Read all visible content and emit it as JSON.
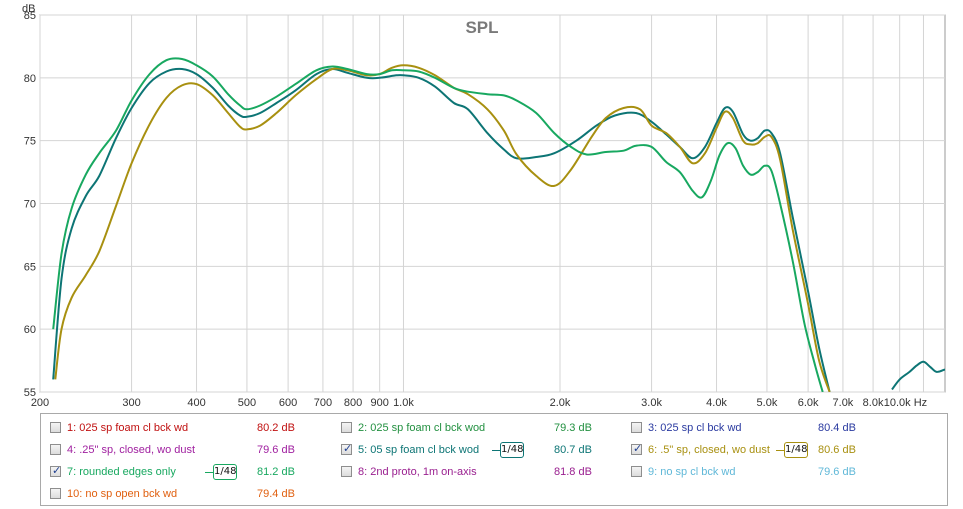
{
  "chart_data": {
    "type": "line",
    "title": "SPL",
    "ylabel": "dB",
    "xunit": "Hz",
    "xscale": "log",
    "xlim": [
      200,
      11000
    ],
    "ylim": [
      55,
      85
    ],
    "grid": true,
    "yticks": [
      55,
      60,
      65,
      70,
      75,
      80,
      85
    ],
    "xticks": [
      {
        "v": 200,
        "label": "200"
      },
      {
        "v": 300,
        "label": "300"
      },
      {
        "v": 400,
        "label": "400"
      },
      {
        "v": 500,
        "label": "500"
      },
      {
        "v": 600,
        "label": "600"
      },
      {
        "v": 700,
        "label": "700"
      },
      {
        "v": 800,
        "label": "800"
      },
      {
        "v": 900,
        "label": "900"
      },
      {
        "v": 1000,
        "label": "1.0k"
      },
      {
        "v": 2000,
        "label": "2.0k"
      },
      {
        "v": 3000,
        "label": "3.0k"
      },
      {
        "v": 4000,
        "label": "4.0k"
      },
      {
        "v": 5000,
        "label": "5.0k"
      },
      {
        "v": 6000,
        "label": "6.0k"
      },
      {
        "v": 7000,
        "label": "7.0k"
      },
      {
        "v": 8000,
        "label": "8.0k"
      },
      {
        "v": 10000,
        "label": "10.0k Hz"
      }
    ],
    "series": [
      {
        "id": "s5",
        "color": "#0d7575",
        "points": [
          [
            212,
            56
          ],
          [
            220,
            64
          ],
          [
            230,
            68
          ],
          [
            245,
            70.6
          ],
          [
            260,
            72.2
          ],
          [
            280,
            75.2
          ],
          [
            300,
            77.6
          ],
          [
            325,
            79.6
          ],
          [
            350,
            80.5
          ],
          [
            375,
            80.7
          ],
          [
            400,
            80.3
          ],
          [
            430,
            79.2
          ],
          [
            460,
            77.8
          ],
          [
            485,
            77.0
          ],
          [
            500,
            76.9
          ],
          [
            530,
            77.2
          ],
          [
            570,
            78.0
          ],
          [
            620,
            79.0
          ],
          [
            680,
            80.3
          ],
          [
            730,
            80.7
          ],
          [
            780,
            80.4
          ],
          [
            850,
            80.0
          ],
          [
            900,
            80.0
          ],
          [
            970,
            80.2
          ],
          [
            1000,
            80.2
          ],
          [
            1070,
            80.0
          ],
          [
            1150,
            79.3
          ],
          [
            1250,
            78.0
          ],
          [
            1330,
            77.5
          ],
          [
            1450,
            75.6
          ],
          [
            1560,
            74.3
          ],
          [
            1650,
            73.6
          ],
          [
            1800,
            73.7
          ],
          [
            1950,
            74.0
          ],
          [
            2150,
            75.0
          ],
          [
            2350,
            76.2
          ],
          [
            2550,
            77.0
          ],
          [
            2800,
            77.2
          ],
          [
            3000,
            76.5
          ],
          [
            3200,
            75.5
          ],
          [
            3400,
            74.5
          ],
          [
            3600,
            73.6
          ],
          [
            3800,
            74.5
          ],
          [
            4000,
            76.4
          ],
          [
            4150,
            77.6
          ],
          [
            4300,
            77.3
          ],
          [
            4500,
            75.5
          ],
          [
            4650,
            75.0
          ],
          [
            4800,
            75.2
          ],
          [
            4950,
            75.8
          ],
          [
            5100,
            75.6
          ],
          [
            5300,
            74.0
          ],
          [
            5600,
            69.0
          ],
          [
            6000,
            63.0
          ],
          [
            6300,
            58.5
          ],
          [
            6600,
            55.0
          ]
        ]
      },
      {
        "id": "s6",
        "color": "#a89010",
        "points": [
          [
            214,
            56
          ],
          [
            220,
            60
          ],
          [
            230,
            62.5
          ],
          [
            245,
            64.3
          ],
          [
            260,
            66.2
          ],
          [
            280,
            69.8
          ],
          [
            300,
            73.2
          ],
          [
            325,
            76.3
          ],
          [
            350,
            78.4
          ],
          [
            375,
            79.4
          ],
          [
            400,
            79.5
          ],
          [
            430,
            78.6
          ],
          [
            460,
            77.2
          ],
          [
            485,
            76.1
          ],
          [
            500,
            75.9
          ],
          [
            530,
            76.2
          ],
          [
            570,
            77.2
          ],
          [
            620,
            78.6
          ],
          [
            680,
            79.9
          ],
          [
            730,
            80.7
          ],
          [
            780,
            80.6
          ],
          [
            850,
            80.2
          ],
          [
            900,
            80.3
          ],
          [
            950,
            80.8
          ],
          [
            1000,
            81.0
          ],
          [
            1070,
            80.8
          ],
          [
            1150,
            80.2
          ],
          [
            1250,
            79.2
          ],
          [
            1330,
            78.7
          ],
          [
            1450,
            77.5
          ],
          [
            1560,
            75.8
          ],
          [
            1650,
            73.9
          ],
          [
            1800,
            72.2
          ],
          [
            1950,
            71.4
          ],
          [
            2100,
            72.7
          ],
          [
            2300,
            75.3
          ],
          [
            2450,
            76.8
          ],
          [
            2650,
            77.6
          ],
          [
            2850,
            77.5
          ],
          [
            3000,
            76.2
          ],
          [
            3200,
            75.6
          ],
          [
            3400,
            74.5
          ],
          [
            3600,
            73.2
          ],
          [
            3800,
            74.0
          ],
          [
            4000,
            76.0
          ],
          [
            4150,
            77.3
          ],
          [
            4300,
            76.8
          ],
          [
            4500,
            75.0
          ],
          [
            4650,
            74.7
          ],
          [
            4800,
            74.8
          ],
          [
            4950,
            75.3
          ],
          [
            5100,
            75.3
          ],
          [
            5300,
            73.5
          ],
          [
            5600,
            68.0
          ],
          [
            6000,
            62.0
          ],
          [
            6300,
            57.5
          ],
          [
            6600,
            55.0
          ]
        ]
      },
      {
        "id": "s7",
        "color": "#18a860",
        "points": [
          [
            212,
            60
          ],
          [
            220,
            66
          ],
          [
            230,
            69.6
          ],
          [
            245,
            72.3
          ],
          [
            260,
            74.0
          ],
          [
            280,
            75.8
          ],
          [
            300,
            78.2
          ],
          [
            325,
            80.3
          ],
          [
            350,
            81.4
          ],
          [
            375,
            81.5
          ],
          [
            400,
            81.0
          ],
          [
            430,
            80.1
          ],
          [
            460,
            78.7
          ],
          [
            485,
            77.8
          ],
          [
            500,
            77.5
          ],
          [
            530,
            77.8
          ],
          [
            570,
            78.5
          ],
          [
            620,
            79.5
          ],
          [
            680,
            80.6
          ],
          [
            730,
            80.9
          ],
          [
            780,
            80.7
          ],
          [
            850,
            80.3
          ],
          [
            900,
            80.3
          ],
          [
            950,
            80.6
          ],
          [
            1000,
            80.6
          ],
          [
            1070,
            80.5
          ],
          [
            1150,
            80.0
          ],
          [
            1250,
            79.2
          ],
          [
            1330,
            78.9
          ],
          [
            1450,
            78.7
          ],
          [
            1560,
            78.6
          ],
          [
            1650,
            78.2
          ],
          [
            1800,
            77.2
          ],
          [
            1950,
            75.6
          ],
          [
            2100,
            74.5
          ],
          [
            2250,
            73.9
          ],
          [
            2450,
            74.1
          ],
          [
            2650,
            74.2
          ],
          [
            2800,
            74.6
          ],
          [
            3000,
            74.5
          ],
          [
            3200,
            73.3
          ],
          [
            3400,
            72.5
          ],
          [
            3600,
            71.0
          ],
          [
            3750,
            70.5
          ],
          [
            3900,
            71.8
          ],
          [
            4050,
            73.8
          ],
          [
            4200,
            74.8
          ],
          [
            4350,
            74.4
          ],
          [
            4500,
            73.0
          ],
          [
            4650,
            72.3
          ],
          [
            4800,
            72.5
          ],
          [
            4950,
            73.0
          ],
          [
            5100,
            72.6
          ],
          [
            5300,
            70.0
          ],
          [
            5600,
            65.5
          ],
          [
            5900,
            60.5
          ],
          [
            6200,
            57.0
          ],
          [
            6400,
            55.0
          ]
        ]
      },
      {
        "id": "s5-tail",
        "color": "#0d7575",
        "points": [
          [
            8700,
            55.2
          ],
          [
            9000,
            56.0
          ],
          [
            9400,
            56.6
          ],
          [
            9700,
            57.1
          ],
          [
            10000,
            57.4
          ],
          [
            10300,
            57.0
          ],
          [
            10600,
            56.6
          ],
          [
            11000,
            56.8
          ]
        ]
      }
    ]
  },
  "legend": {
    "items": [
      {
        "label": "1: 025 sp foam cl bck wd",
        "value": "80.2 dB",
        "color": "#c01010",
        "checked": false,
        "smooth": ""
      },
      {
        "label": "2: 025 sp foam cl bck wod",
        "value": "79.3 dB",
        "color": "#229040",
        "checked": false,
        "smooth": ""
      },
      {
        "label": "3: 025 sp cl bck wd",
        "value": "80.4 dB",
        "color": "#2a3aa0",
        "checked": false,
        "smooth": ""
      },
      {
        "label": "4: .25\" sp, closed, wo dust",
        "value": "79.6 dB",
        "color": "#a020a0",
        "checked": false,
        "smooth": ""
      },
      {
        "label": "5: 05 sp foam cl bck wod",
        "value": "80.7 dB",
        "color": "#0d7575",
        "checked": true,
        "smooth": "1/48"
      },
      {
        "label": "6: .5\" sp, closed, wo dust",
        "value": "80.6 dB",
        "color": "#a89010",
        "checked": true,
        "smooth": "1/48"
      },
      {
        "label": "7: rounded edges only",
        "value": "81.2 dB",
        "color": "#18a860",
        "checked": true,
        "smooth": "1/48"
      },
      {
        "label": "8: 2nd proto, 1m on-axis",
        "value": "81.8 dB",
        "color": "#9a2090",
        "checked": false,
        "smooth": ""
      },
      {
        "label": "9: no sp cl bck wd",
        "value": "79.6 dB",
        "color": "#60b8d8",
        "checked": false,
        "smooth": ""
      },
      {
        "label": "10: no sp open bck wd",
        "value": "79.4 dB",
        "color": "#e06010",
        "checked": false,
        "smooth": ""
      }
    ]
  }
}
